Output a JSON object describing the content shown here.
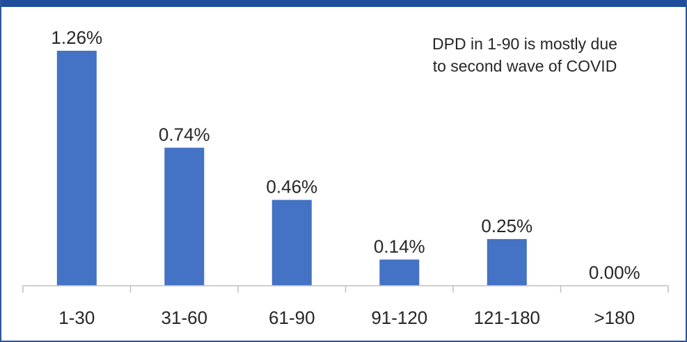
{
  "chart_data": {
    "type": "bar",
    "categories": [
      "1-30",
      "31-60",
      "61-90",
      "91-120",
      "121-180",
      ">180"
    ],
    "values": [
      1.26,
      0.74,
      0.46,
      0.14,
      0.25,
      0.0
    ],
    "value_labels": [
      "1.26%",
      "0.74%",
      "0.46%",
      "0.14%",
      "0.25%",
      "0.00%"
    ],
    "ylim": [
      0,
      1.26
    ],
    "grid": false,
    "bar_color": "#4472c4",
    "annotation": [
      "DPD in 1-90 is mostly due",
      "to second wave of COVID"
    ]
  },
  "colors": {
    "frame": "#2f5597",
    "top_band": "#1f4e9c",
    "axis": "#bfbfbf",
    "text": "#262626"
  }
}
